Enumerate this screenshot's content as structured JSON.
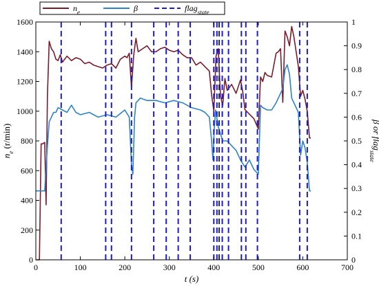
{
  "chart_data": {
    "type": "line",
    "title": "",
    "xlabel": "t (s)",
    "ylabel_left": "n_e (r/min)",
    "ylabel_right": "β or flag_state",
    "xlim": [
      0,
      700
    ],
    "ylim_left": [
      0,
      1600
    ],
    "ylim_right": [
      0,
      1
    ],
    "x_ticks": [
      0,
      100,
      200,
      300,
      400,
      500,
      600,
      700
    ],
    "y_ticks_left": [
      0,
      200,
      400,
      600,
      800,
      1000,
      1200,
      1400,
      1600
    ],
    "y_ticks_right": [
      0,
      0.1,
      0.2,
      0.3,
      0.4,
      0.5,
      0.6,
      0.7,
      0.8,
      0.9,
      1
    ],
    "grid": false,
    "legend_position": "top-left",
    "colors": {
      "ne": "#7a1a2a",
      "beta": "#2a82c8",
      "flag": "#1a1ad0"
    },
    "legend": [
      {
        "key": "ne",
        "base": "n",
        "sub": "e",
        "style": "solid"
      },
      {
        "key": "beta",
        "base": "β",
        "sub": "",
        "style": "solid"
      },
      {
        "key": "flag",
        "base": "flag",
        "sub": "state",
        "style": "dashed"
      }
    ],
    "series": [
      {
        "name": "n_e",
        "axis": "left",
        "key": "ne",
        "x": [
          0,
          8,
          12,
          15,
          20,
          23,
          26,
          30,
          35,
          40,
          45,
          50,
          55,
          60,
          70,
          80,
          90,
          100,
          110,
          120,
          130,
          140,
          150,
          160,
          170,
          180,
          190,
          200,
          205,
          210,
          215,
          220,
          225,
          230,
          240,
          250,
          260,
          270,
          280,
          290,
          300,
          310,
          320,
          330,
          340,
          350,
          360,
          370,
          380,
          390,
          395,
          400,
          405,
          410,
          415,
          420,
          425,
          430,
          440,
          450,
          460,
          465,
          470,
          480,
          490,
          500,
          505,
          510,
          515,
          520,
          530,
          540,
          545,
          550,
          555,
          560,
          565,
          570,
          575,
          580,
          590,
          595,
          600,
          605,
          610,
          615,
          618
        ],
        "values": [
          0,
          0,
          780,
          780,
          790,
          370,
          1100,
          1470,
          1420,
          1400,
          1350,
          1340,
          1380,
          1330,
          1370,
          1340,
          1360,
          1350,
          1320,
          1330,
          1310,
          1300,
          1290,
          1310,
          1320,
          1290,
          1350,
          1370,
          1360,
          1390,
          1160,
          1380,
          1490,
          1400,
          1420,
          1440,
          1400,
          1400,
          1420,
          1430,
          1410,
          1400,
          1410,
          1380,
          1360,
          1360,
          1310,
          1330,
          1300,
          1270,
          1110,
          1000,
          1370,
          1420,
          1100,
          1040,
          1220,
          1140,
          1180,
          1120,
          1210,
          1130,
          1010,
          980,
          950,
          880,
          1230,
          1200,
          1260,
          1240,
          1230,
          1390,
          1400,
          1420,
          1060,
          1540,
          1500,
          1440,
          1570,
          1500,
          1300,
          1100,
          1140,
          1080,
          1000,
          820,
          820
        ]
      },
      {
        "name": "β",
        "axis": "right",
        "key": "beta",
        "x": [
          0,
          10,
          15,
          20,
          25,
          30,
          35,
          40,
          45,
          50,
          60,
          70,
          80,
          90,
          100,
          120,
          140,
          160,
          180,
          200,
          210,
          215,
          218,
          222,
          225,
          235,
          250,
          270,
          290,
          310,
          330,
          350,
          370,
          380,
          390,
          395,
          398,
          401,
          404,
          410,
          420,
          430,
          440,
          450,
          460,
          470,
          480,
          490,
          500,
          505,
          510,
          520,
          530,
          540,
          550,
          555,
          560,
          565,
          570,
          575,
          580,
          590,
          595,
          600,
          605,
          610,
          615,
          618
        ],
        "values": [
          0.29,
          0.29,
          0.29,
          0.29,
          0.45,
          0.58,
          0.6,
          0.62,
          0.62,
          0.64,
          0.63,
          0.62,
          0.65,
          0.62,
          0.61,
          0.62,
          0.6,
          0.61,
          0.6,
          0.63,
          0.6,
          0.4,
          0.36,
          0.6,
          0.66,
          0.68,
          0.67,
          0.67,
          0.66,
          0.67,
          0.66,
          0.64,
          0.63,
          0.62,
          0.6,
          0.5,
          0.42,
          0.55,
          0.63,
          0.56,
          0.5,
          0.5,
          0.48,
          0.46,
          0.42,
          0.39,
          0.42,
          0.38,
          0.36,
          0.65,
          0.64,
          0.63,
          0.63,
          0.66,
          0.7,
          0.72,
          0.8,
          0.82,
          0.78,
          0.68,
          0.66,
          0.62,
          0.44,
          0.5,
          0.47,
          0.41,
          0.29,
          0.29
        ]
      },
      {
        "name": "flag_state",
        "axis": "right",
        "key": "flag",
        "type": "vertical_lines",
        "x": [
          57,
          157,
          170,
          215,
          265,
          293,
          320,
          347,
          400,
          407,
          412,
          419,
          433,
          462,
          472,
          498,
          593,
          610
        ],
        "low": 0,
        "high": 1
      }
    ]
  }
}
